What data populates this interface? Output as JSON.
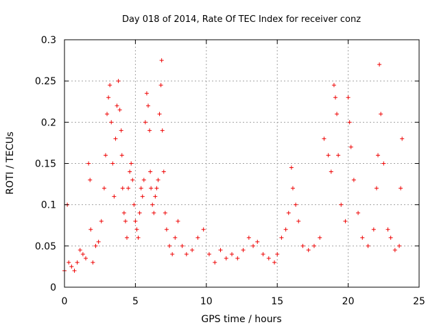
{
  "chart_data": {
    "type": "scatter",
    "title": "Day 018 of 2014, Rate Of TEC Index for receiver conz",
    "xlabel": "GPS time / hours",
    "ylabel": "ROTI / TECUs",
    "xlim": [
      0,
      25
    ],
    "ylim": [
      0,
      0.3
    ],
    "x_ticks": [
      0,
      5,
      10,
      15,
      20,
      25
    ],
    "x_tick_labels": [
      "0",
      "5",
      "10",
      "15",
      "20",
      "25"
    ],
    "y_ticks": [
      0,
      0.05,
      0.1,
      0.15,
      0.2,
      0.25,
      0.3
    ],
    "y_tick_labels": [
      "0",
      "0.05",
      "0.1",
      "0.15",
      "0.2",
      "0.25",
      "0.3"
    ],
    "grid": true,
    "marker": "plus",
    "series": [
      {
        "name": "ROTI",
        "color": "#ee0000",
        "x": [
          0.0,
          0.2,
          0.3,
          0.5,
          0.7,
          0.9,
          1.1,
          1.3,
          1.5,
          1.7,
          1.8,
          1.85,
          2.0,
          2.2,
          2.4,
          2.6,
          2.8,
          2.9,
          3.0,
          3.1,
          3.2,
          3.3,
          3.4,
          3.5,
          3.6,
          3.7,
          3.8,
          3.9,
          4.0,
          4.05,
          4.1,
          4.2,
          4.3,
          4.4,
          4.5,
          4.6,
          4.7,
          4.8,
          4.9,
          5.0,
          5.1,
          5.2,
          5.3,
          5.4,
          5.5,
          5.6,
          5.7,
          5.8,
          5.9,
          6.0,
          6.05,
          6.1,
          6.2,
          6.3,
          6.4,
          6.5,
          6.6,
          6.7,
          6.8,
          6.85,
          6.9,
          7.0,
          7.1,
          7.2,
          7.4,
          7.6,
          7.8,
          8.0,
          8.3,
          8.6,
          9.0,
          9.4,
          9.8,
          10.2,
          10.6,
          11.0,
          11.4,
          11.8,
          12.2,
          12.6,
          13.0,
          13.3,
          13.6,
          14.0,
          14.4,
          14.8,
          15.0,
          15.3,
          15.6,
          15.8,
          16.0,
          16.1,
          16.3,
          16.5,
          16.8,
          17.2,
          17.6,
          18.0,
          18.3,
          18.6,
          18.8,
          19.0,
          19.1,
          19.2,
          19.3,
          19.5,
          19.8,
          20.0,
          20.1,
          20.2,
          20.4,
          20.7,
          21.0,
          21.4,
          21.8,
          22.0,
          22.1,
          22.2,
          22.3,
          22.5,
          22.8,
          23.0,
          23.3,
          23.6,
          23.7,
          23.8
        ],
        "y": [
          0.02,
          0.1,
          0.03,
          0.025,
          0.02,
          0.03,
          0.045,
          0.04,
          0.035,
          0.15,
          0.13,
          0.07,
          0.03,
          0.05,
          0.055,
          0.08,
          0.12,
          0.16,
          0.21,
          0.23,
          0.245,
          0.2,
          0.15,
          0.11,
          0.18,
          0.22,
          0.25,
          0.215,
          0.19,
          0.16,
          0.12,
          0.09,
          0.08,
          0.06,
          0.12,
          0.14,
          0.15,
          0.13,
          0.1,
          0.08,
          0.07,
          0.06,
          0.09,
          0.12,
          0.11,
          0.13,
          0.2,
          0.235,
          0.22,
          0.19,
          0.14,
          0.12,
          0.1,
          0.09,
          0.11,
          0.12,
          0.13,
          0.21,
          0.245,
          0.275,
          0.19,
          0.14,
          0.09,
          0.07,
          0.05,
          0.04,
          0.06,
          0.08,
          0.05,
          0.04,
          0.045,
          0.06,
          0.07,
          0.04,
          0.03,
          0.045,
          0.035,
          0.04,
          0.035,
          0.045,
          0.06,
          0.05,
          0.055,
          0.04,
          0.035,
          0.03,
          0.04,
          0.06,
          0.07,
          0.09,
          0.145,
          0.12,
          0.1,
          0.08,
          0.05,
          0.045,
          0.05,
          0.06,
          0.18,
          0.16,
          0.14,
          0.245,
          0.23,
          0.21,
          0.16,
          0.1,
          0.08,
          0.23,
          0.2,
          0.17,
          0.13,
          0.09,
          0.06,
          0.05,
          0.07,
          0.12,
          0.16,
          0.27,
          0.21,
          0.15,
          0.07,
          0.06,
          0.045,
          0.05,
          0.12,
          0.18
        ]
      }
    ]
  }
}
